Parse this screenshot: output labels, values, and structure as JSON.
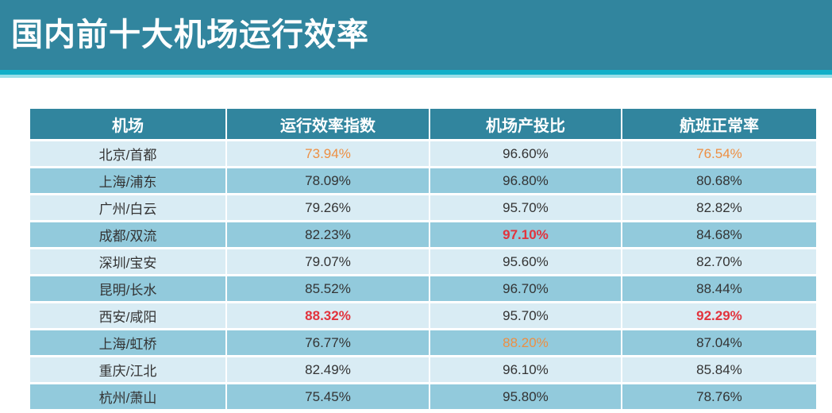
{
  "banner": {
    "title": "国内前十大机场运行效率"
  },
  "colors": {
    "teal": "#31859E",
    "stripe": "#12AFC8",
    "stripe_light": "#9ADFE8",
    "row_light": "#D9ECF4",
    "row_dark": "#92CADC",
    "text": "#333333",
    "orange": "#ED8F43",
    "red": "#E2333D",
    "header_text": "#FFFFFF"
  },
  "chart_data": {
    "type": "table",
    "title": "国内前十大机场运行效率",
    "columns": [
      "机场",
      "运行效率指数",
      "机场产投比",
      "航班正常率"
    ],
    "rows": [
      {
        "airport": "北京/首都",
        "values": [
          "73.94%",
          "96.60%",
          "76.54%"
        ],
        "highlights": [
          "orange",
          null,
          "orange"
        ]
      },
      {
        "airport": "上海/浦东",
        "values": [
          "78.09%",
          "96.80%",
          "80.68%"
        ],
        "highlights": [
          null,
          null,
          null
        ]
      },
      {
        "airport": "广州/白云",
        "values": [
          "79.26%",
          "95.70%",
          "82.82%"
        ],
        "highlights": [
          null,
          null,
          null
        ]
      },
      {
        "airport": "成都/双流",
        "values": [
          "82.23%",
          "97.10%",
          "84.68%"
        ],
        "highlights": [
          null,
          "red",
          null
        ]
      },
      {
        "airport": "深圳/宝安",
        "values": [
          "79.07%",
          "95.60%",
          "82.70%"
        ],
        "highlights": [
          null,
          null,
          null
        ]
      },
      {
        "airport": "昆明/长水",
        "values": [
          "85.52%",
          "96.70%",
          "88.44%"
        ],
        "highlights": [
          null,
          null,
          null
        ]
      },
      {
        "airport": "西安/咸阳",
        "values": [
          "88.32%",
          "95.70%",
          "92.29%"
        ],
        "highlights": [
          "red",
          null,
          "red"
        ]
      },
      {
        "airport": "上海/虹桥",
        "values": [
          "76.77%",
          "88.20%",
          "87.04%"
        ],
        "highlights": [
          null,
          "orange",
          null
        ]
      },
      {
        "airport": "重庆/江北",
        "values": [
          "82.49%",
          "96.10%",
          "85.84%"
        ],
        "highlights": [
          null,
          null,
          null
        ]
      },
      {
        "airport": "杭州/萧山",
        "values": [
          "75.45%",
          "95.80%",
          "78.76%"
        ],
        "highlights": [
          null,
          null,
          null
        ]
      }
    ],
    "notes": {
      "highlight_orange_meaning": "lowest-style accent values shown in orange",
      "highlight_red_meaning": "highest-style accent values shown in bold red"
    }
  }
}
